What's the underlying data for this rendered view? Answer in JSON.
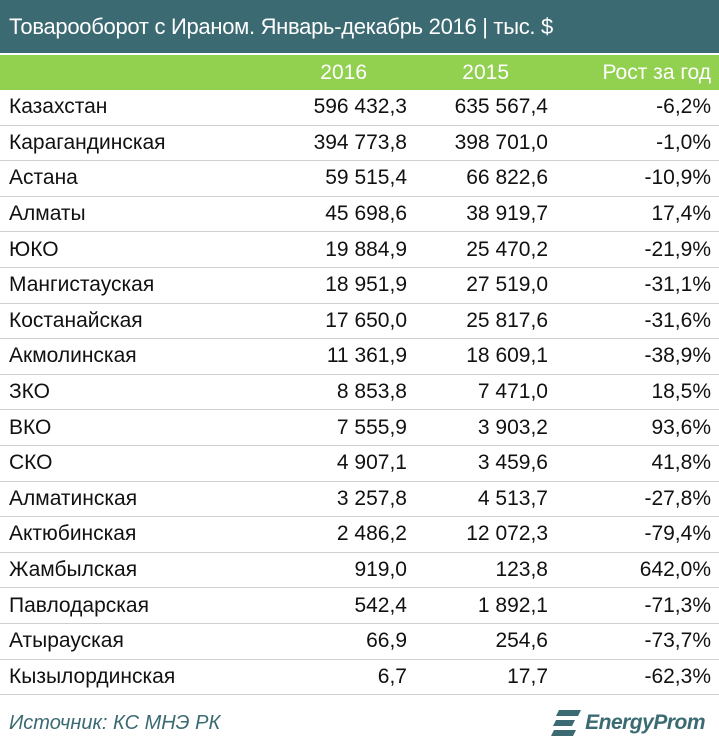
{
  "title": "Товарооборот с Ираном. Январь-декабрь 2016 | тыс. $",
  "headers": {
    "name": "",
    "col1": "2016",
    "col2": "2015",
    "col3": "Рост за год"
  },
  "rows": [
    {
      "name": "Казахстан",
      "v2016": "596 432,3",
      "v2015": "635 567,4",
      "growth": "-6,2%"
    },
    {
      "name": "Карагандинская",
      "v2016": "394 773,8",
      "v2015": "398 701,0",
      "growth": "-1,0%"
    },
    {
      "name": "Астана",
      "v2016": "59 515,4",
      "v2015": "66 822,6",
      "growth": "-10,9%"
    },
    {
      "name": "Алматы",
      "v2016": "45 698,6",
      "v2015": "38 919,7",
      "growth": "17,4%"
    },
    {
      "name": "ЮКО",
      "v2016": "19 884,9",
      "v2015": "25 470,2",
      "growth": "-21,9%"
    },
    {
      "name": "Мангистауская",
      "v2016": "18 951,9",
      "v2015": "27 519,0",
      "growth": "-31,1%"
    },
    {
      "name": "Костанайская",
      "v2016": "17 650,0",
      "v2015": "25 817,6",
      "growth": "-31,6%"
    },
    {
      "name": "Акмолинская",
      "v2016": "11 361,9",
      "v2015": "18 609,1",
      "growth": "-38,9%"
    },
    {
      "name": "ЗКО",
      "v2016": "8 853,8",
      "v2015": "7 471,0",
      "growth": "18,5%"
    },
    {
      "name": "ВКО",
      "v2016": "7 555,9",
      "v2015": "3 903,2",
      "growth": "93,6%"
    },
    {
      "name": "СКО",
      "v2016": "4 907,1",
      "v2015": "3 459,6",
      "growth": "41,8%"
    },
    {
      "name": "Алматинская",
      "v2016": "3 257,8",
      "v2015": "4 513,7",
      "growth": "-27,8%"
    },
    {
      "name": "Актюбинская",
      "v2016": "2 486,2",
      "v2015": "12 072,3",
      "growth": "-79,4%"
    },
    {
      "name": "Жамбылская",
      "v2016": "919,0",
      "v2015": "123,8",
      "growth": "642,0%"
    },
    {
      "name": "Павлодарская",
      "v2016": "542,4",
      "v2015": "1 892,1",
      "growth": "-71,3%"
    },
    {
      "name": "Атырауская",
      "v2016": "66,9",
      "v2015": "254,6",
      "growth": "-73,7%"
    },
    {
      "name": "Кызылординская",
      "v2016": "6,7",
      "v2015": "17,7",
      "growth": "-62,3%"
    }
  ],
  "source": "Источник: КС МНЭ РК",
  "logo": {
    "text": "EnergyProm",
    "icon": "energyprom-logo-icon"
  },
  "colors": {
    "title_bg": "#3b6a73",
    "header_bg": "#92d050",
    "row_line": "#cfcfcf"
  }
}
